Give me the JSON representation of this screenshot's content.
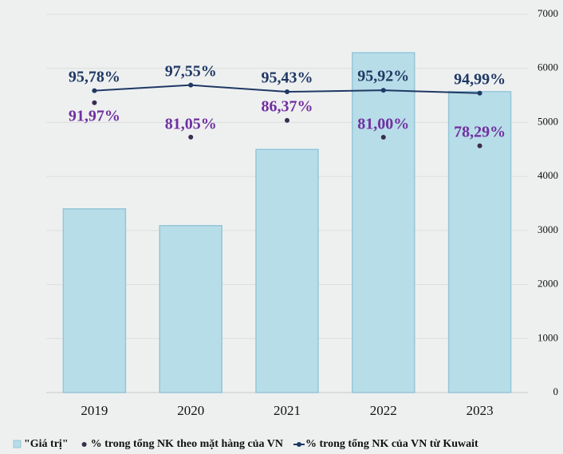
{
  "chart_data": {
    "type": "bar",
    "categories": [
      "2019",
      "2020",
      "2021",
      "2022",
      "2023"
    ],
    "ylim": [
      0,
      7000
    ],
    "yticks": [
      0,
      1000,
      2000,
      3000,
      4000,
      5000,
      6000,
      7000
    ],
    "y2lim": [
      0,
      120
    ],
    "grid": true,
    "series": [
      {
        "name": "\"Giá trị\"",
        "type": "bar",
        "color": "#b7dde8",
        "values": [
          3400,
          3090,
          4500,
          6290,
          5570
        ]
      },
      {
        "name": "% trong tổng NK theo mặt hàng của VN",
        "type": "scatter",
        "axis": "y2",
        "color": "#3b2d4f",
        "label_color": "#7030a0",
        "values": [
          91.97,
          81.05,
          86.37,
          81.0,
          78.29
        ],
        "value_labels": [
          "91,97%",
          "81,05%",
          "86,37%",
          "81,00%",
          "78,29%"
        ]
      },
      {
        "name": "% trong tổng NK của VN từ Kuwait",
        "type": "line",
        "axis": "y2",
        "color": "#1f3864",
        "label_color": "#1f3864",
        "values": [
          95.78,
          97.55,
          95.43,
          95.92,
          94.99
        ],
        "value_labels": [
          "95,78%",
          "97,55%",
          "95,43%",
          "95,92%",
          "94,99%"
        ]
      }
    ]
  }
}
